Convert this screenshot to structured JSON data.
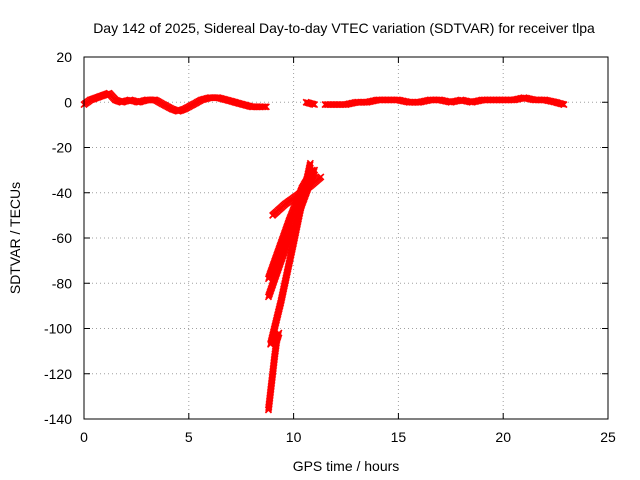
{
  "colors": {
    "series": "#ff0000",
    "grid": "#a0a0a0",
    "axis": "#000000"
  },
  "chart_data": {
    "type": "scatter",
    "title": "Day 142 of 2025, Sidereal Day-to-day VTEC variation (SDTVAR) for receiver tlpa",
    "xlabel": "GPS time / hours",
    "ylabel": "SDTVAR / TECUs",
    "xlim": [
      0,
      25
    ],
    "ylim": [
      -140,
      20
    ],
    "xticks": [
      0,
      5,
      10,
      15,
      20,
      25
    ],
    "yticks": [
      20,
      0,
      -20,
      -40,
      -60,
      -80,
      -100,
      -120,
      -140
    ],
    "grid": true,
    "marker": "cross",
    "series": [
      {
        "polylines": [
          [
            [
              0.0,
              -1
            ],
            [
              0.3,
              1
            ],
            [
              0.6,
              2
            ],
            [
              0.9,
              3
            ],
            [
              1.2,
              4
            ],
            [
              1.5,
              1
            ],
            [
              1.8,
              0
            ],
            [
              2.2,
              1
            ],
            [
              2.6,
              0
            ],
            [
              3.0,
              1
            ],
            [
              3.4,
              1
            ],
            [
              3.8,
              -1
            ],
            [
              4.2,
              -3
            ],
            [
              4.5,
              -4
            ],
            [
              4.8,
              -3
            ],
            [
              5.2,
              -1
            ],
            [
              5.6,
              1
            ],
            [
              6.0,
              2
            ],
            [
              6.4,
              2
            ],
            [
              6.8,
              1
            ],
            [
              7.2,
              0
            ],
            [
              7.6,
              -1
            ],
            [
              8.0,
              -2
            ],
            [
              8.4,
              -2
            ],
            [
              8.7,
              -2
            ]
          ],
          [
            [
              10.6,
              0
            ],
            [
              11.0,
              -1
            ]
          ],
          [
            [
              11.5,
              -1
            ],
            [
              12.0,
              -1
            ],
            [
              12.5,
              -1
            ],
            [
              13.0,
              0
            ],
            [
              13.5,
              0
            ],
            [
              14.0,
              1
            ],
            [
              14.5,
              1
            ],
            [
              15.0,
              1
            ],
            [
              15.5,
              0
            ],
            [
              16.0,
              0
            ],
            [
              16.5,
              1
            ],
            [
              17.0,
              1
            ],
            [
              17.5,
              0
            ],
            [
              18.0,
              1
            ],
            [
              18.5,
              0
            ],
            [
              19.0,
              1
            ],
            [
              19.5,
              1
            ],
            [
              20.0,
              1
            ],
            [
              20.5,
              1
            ],
            [
              21.0,
              2
            ],
            [
              21.5,
              1
            ],
            [
              22.0,
              1
            ],
            [
              22.5,
              0
            ],
            [
              22.9,
              -1
            ]
          ],
          [
            [
              8.9,
              -107
            ],
            [
              9.4,
              -88
            ],
            [
              10.0,
              -62
            ],
            [
              10.4,
              -44
            ],
            [
              10.8,
              -27
            ]
          ],
          [
            [
              8.8,
              -86
            ],
            [
              9.4,
              -70
            ],
            [
              10.0,
              -55
            ],
            [
              10.6,
              -40
            ],
            [
              11.0,
              -30
            ]
          ],
          [
            [
              8.8,
              -78
            ],
            [
              9.3,
              -65
            ],
            [
              9.8,
              -52
            ],
            [
              10.4,
              -38
            ],
            [
              10.9,
              -30
            ]
          ],
          [
            [
              9.0,
              -50
            ],
            [
              9.6,
              -45
            ],
            [
              10.2,
              -41
            ],
            [
              10.8,
              -37
            ],
            [
              11.3,
              -33
            ]
          ],
          [
            [
              8.8,
              -136
            ],
            [
              8.9,
              -128
            ],
            [
              9.0,
              -120
            ],
            [
              9.1,
              -112
            ],
            [
              9.2,
              -105
            ],
            [
              9.3,
              -102
            ]
          ]
        ]
      }
    ]
  }
}
